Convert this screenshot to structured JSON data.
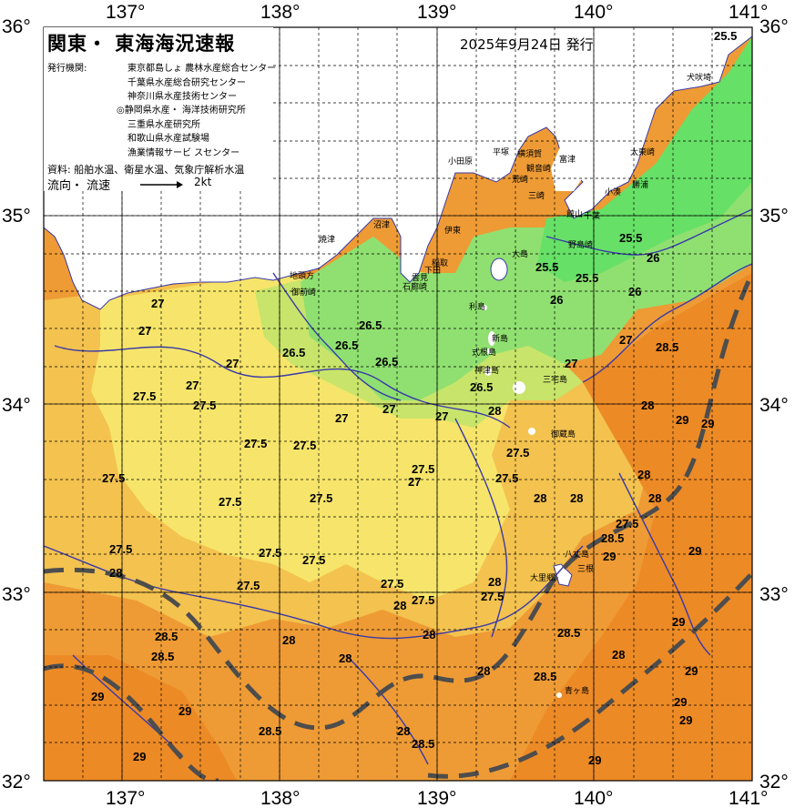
{
  "title": "関東・ 東海海況速報",
  "issued": "2025年9月24日 発行",
  "legend": {
    "org_label": "発行機関:",
    "orgs": [
      "東京都島しょ 農林水産総合センター",
      "千葉県水産総合研究センター",
      "神奈川県水産技術センター",
      "◎静岡県水産・ 海洋技術研究所",
      "三重県水産研究所",
      "和歌山県水産試験場",
      "漁業情報サービ スセンター"
    ],
    "source": "資料: 船舶水温、衛星水温、気象庁解析水温",
    "flow_label": "流向・ 流速",
    "flow_unit": "2kt"
  },
  "axes": {
    "lon_labels": [
      "137°",
      "138°",
      "139°",
      "140°",
      "141°"
    ],
    "lat_labels": [
      "36°",
      "35°",
      "34°",
      "33°",
      "32°"
    ]
  },
  "places": [
    "犬吠埼",
    "太東崎",
    "勝浦",
    "小湊",
    "千葉",
    "館山",
    "野島崎",
    "富津",
    "観音崎",
    "三崎",
    "荒崎",
    "横須賀",
    "平塚",
    "小田原",
    "沼津",
    "焼津",
    "地頭方",
    "御前崎",
    "伊東",
    "稲取",
    "下田",
    "石廊崎",
    "雲見",
    "大島",
    "利島",
    "新島",
    "式根島",
    "神津島",
    "三宅島",
    "御蔵島",
    "八丈島",
    "大里郷",
    "三根",
    "青ヶ島"
  ],
  "isotherms": [
    "25.5",
    "25.5",
    "25.5",
    "25.5",
    "26",
    "26",
    "26",
    "26.5",
    "26.5",
    "26.5",
    "26.5",
    "26.5",
    "27",
    "27",
    "27",
    "27",
    "27",
    "27",
    "27",
    "27",
    "27",
    "27",
    "27.5",
    "27.5",
    "27.5",
    "27.5",
    "27.5",
    "27.5",
    "27.5",
    "27.5",
    "27.5",
    "27.5",
    "27.5",
    "27.5",
    "27.5",
    "27.5",
    "27.5",
    "27.5",
    "27.5",
    "27.5",
    "28",
    "28",
    "28",
    "28",
    "28",
    "28",
    "28",
    "28",
    "28",
    "28",
    "28",
    "28",
    "28",
    "28",
    "28",
    "28.5",
    "28.5",
    "28.5",
    "28.5",
    "28.5",
    "28.5",
    "28.5",
    "28.5",
    "29",
    "29",
    "29",
    "29",
    "29",
    "29",
    "29",
    "29",
    "29",
    "29",
    "29",
    "29"
  ],
  "colors": {
    "land": "#ffffff",
    "sea_25": "#66e066",
    "sea_26": "#99e070",
    "sea_27": "#f6e56a",
    "sea_27_5": "#f3c24f",
    "sea_28": "#ee9b35",
    "sea_29": "#ec8a26",
    "isotherm_line": "#3a3aa8",
    "kuroshio": "#4d4d4d",
    "grid": "#000000"
  }
}
